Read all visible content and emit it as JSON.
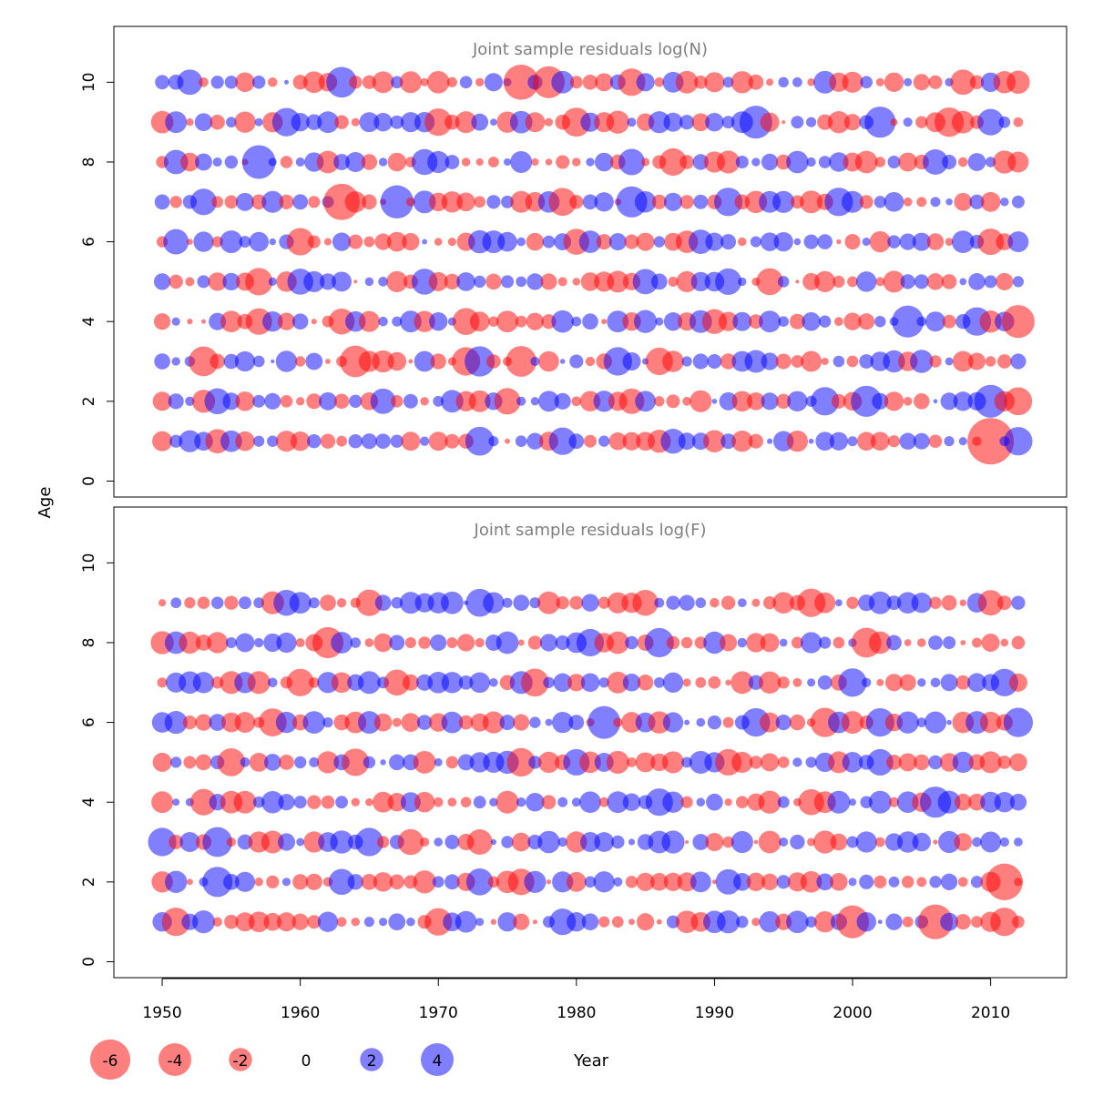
{
  "figure": {
    "ylabel": "Age",
    "xlabel": "Year",
    "colors": {
      "negative": "#ff0000",
      "positive": "#0000ff",
      "axis": "#000000",
      "panel_title": "#7f7f7f",
      "bubble_opacity": 0.5
    },
    "legend": {
      "items": [
        "-6",
        "-4",
        "-2",
        "0",
        "2",
        "4"
      ]
    }
  },
  "chart_data": [
    {
      "type": "scatter",
      "title": "Joint sample residuals log(N)",
      "xlim": [
        1946.5,
        2015.5
      ],
      "ylim": [
        -0.4,
        11.4
      ],
      "xticks": [
        "1950",
        "1960",
        "1970",
        "1980",
        "1990",
        "2000",
        "2010"
      ],
      "yticks": [
        "0",
        "2",
        "4",
        "6",
        "8",
        "10"
      ],
      "ages": [
        1,
        2,
        3,
        4,
        5,
        6,
        7,
        8,
        9,
        10
      ],
      "year_start": 1950,
      "year_end": 2012,
      "notes": "bubble area proportional to |residual|; red = negative, blue = positive",
      "residuals_approx": [
        {
          "age": 1,
          "year": 1950,
          "value": -1.5
        },
        {
          "age": 1,
          "year": 1952,
          "value": 1.8
        },
        {
          "age": 1,
          "year": 1954,
          "value": -2.2
        },
        {
          "age": 1,
          "year": 1973,
          "value": 3.1
        },
        {
          "age": 1,
          "year": 1979,
          "value": 2.8
        },
        {
          "age": 1,
          "year": 1987,
          "value": 2.3
        },
        {
          "age": 1,
          "year": 2010,
          "value": -8.0
        },
        {
          "age": 1,
          "year": 2012,
          "value": 3.0
        },
        {
          "age": 2,
          "year": 1954,
          "value": 2.5
        },
        {
          "age": 2,
          "year": 1966,
          "value": 2.4
        },
        {
          "age": 2,
          "year": 1975,
          "value": -2.6
        },
        {
          "age": 2,
          "year": 1984,
          "value": -2.4
        },
        {
          "age": 2,
          "year": 1998,
          "value": 3.0
        },
        {
          "age": 2,
          "year": 2001,
          "value": 3.6
        },
        {
          "age": 2,
          "year": 2010,
          "value": 4.0
        },
        {
          "age": 2,
          "year": 2012,
          "value": -2.9
        },
        {
          "age": 3,
          "year": 1953,
          "value": -3.3
        },
        {
          "age": 3,
          "year": 1964,
          "value": -3.7
        },
        {
          "age": 3,
          "year": 1972,
          "value": -3.0
        },
        {
          "age": 3,
          "year": 1973,
          "value": 3.4
        },
        {
          "age": 3,
          "year": 1976,
          "value": -3.5
        },
        {
          "age": 3,
          "year": 1983,
          "value": 3.0
        },
        {
          "age": 3,
          "year": 1986,
          "value": -2.8
        },
        {
          "age": 3,
          "year": 2005,
          "value": 2.0
        },
        {
          "age": 4,
          "year": 1957,
          "value": -2.6
        },
        {
          "age": 4,
          "year": 1963,
          "value": -2.5
        },
        {
          "age": 4,
          "year": 1972,
          "value": -2.7
        },
        {
          "age": 4,
          "year": 1990,
          "value": -2.3
        },
        {
          "age": 4,
          "year": 2004,
          "value": 3.8
        },
        {
          "age": 4,
          "year": 2009,
          "value": 3.0
        },
        {
          "age": 4,
          "year": 2012,
          "value": -4.0
        },
        {
          "age": 5,
          "year": 1957,
          "value": -2.8
        },
        {
          "age": 5,
          "year": 1960,
          "value": 2.5
        },
        {
          "age": 5,
          "year": 1969,
          "value": 2.5
        },
        {
          "age": 5,
          "year": 1985,
          "value": 2.4
        },
        {
          "age": 5,
          "year": 1991,
          "value": 2.6
        },
        {
          "age": 5,
          "year": 1994,
          "value": -2.7
        },
        {
          "age": 6,
          "year": 1951,
          "value": 2.4
        },
        {
          "age": 6,
          "year": 1960,
          "value": -2.8
        },
        {
          "age": 6,
          "year": 1980,
          "value": -2.5
        },
        {
          "age": 6,
          "year": 1989,
          "value": 2.2
        },
        {
          "age": 6,
          "year": 2010,
          "value": -2.6
        },
        {
          "age": 7,
          "year": 1953,
          "value": 2.6
        },
        {
          "age": 7,
          "year": 1963,
          "value": -4.9
        },
        {
          "age": 7,
          "year": 1967,
          "value": 4.1
        },
        {
          "age": 7,
          "year": 1979,
          "value": -2.9
        },
        {
          "age": 7,
          "year": 1984,
          "value": 3.6
        },
        {
          "age": 7,
          "year": 1991,
          "value": 3.0
        },
        {
          "age": 7,
          "year": 1999,
          "value": 3.0
        },
        {
          "age": 8,
          "year": 1951,
          "value": 2.2
        },
        {
          "age": 8,
          "year": 1957,
          "value": 4.2
        },
        {
          "age": 8,
          "year": 1969,
          "value": 2.5
        },
        {
          "age": 8,
          "year": 1984,
          "value": 2.6
        },
        {
          "age": 8,
          "year": 1987,
          "value": -2.8
        },
        {
          "age": 8,
          "year": 2006,
          "value": 2.4
        },
        {
          "age": 9,
          "year": 1959,
          "value": 3.0
        },
        {
          "age": 9,
          "year": 1970,
          "value": -2.8
        },
        {
          "age": 9,
          "year": 1980,
          "value": -3.1
        },
        {
          "age": 9,
          "year": 1993,
          "value": 4.0
        },
        {
          "age": 9,
          "year": 2002,
          "value": 3.6
        },
        {
          "age": 9,
          "year": 2007,
          "value": -3.2
        },
        {
          "age": 9,
          "year": 2010,
          "value": 2.6
        },
        {
          "age": 10,
          "year": 1952,
          "value": 2.4
        },
        {
          "age": 10,
          "year": 1963,
          "value": 3.5
        },
        {
          "age": 10,
          "year": 1976,
          "value": -4.6
        },
        {
          "age": 10,
          "year": 1978,
          "value": -3.8
        },
        {
          "age": 10,
          "year": 1984,
          "value": -2.8
        },
        {
          "age": 10,
          "year": 2008,
          "value": -2.4
        },
        {
          "age": 10,
          "year": 2012,
          "value": -2.0
        }
      ]
    },
    {
      "type": "scatter",
      "title": "Joint sample residuals log(F)",
      "xlim": [
        1946.5,
        2015.5
      ],
      "ylim": [
        -0.4,
        11.4
      ],
      "xticks": [
        "1950",
        "1960",
        "1970",
        "1980",
        "1990",
        "2000",
        "2010"
      ],
      "yticks": [
        "0",
        "2",
        "4",
        "6",
        "8",
        "10"
      ],
      "ages": [
        1,
        2,
        3,
        4,
        5,
        6,
        7,
        8,
        9
      ],
      "year_start": 1950,
      "year_end": 2012,
      "notes": "bubble area proportional to |residual|; red = negative, blue = positive",
      "residuals_approx": [
        {
          "age": 1,
          "year": 1951,
          "value": -3.0
        },
        {
          "age": 1,
          "year": 1970,
          "value": -2.8
        },
        {
          "age": 1,
          "year": 1979,
          "value": 2.6
        },
        {
          "age": 1,
          "year": 2000,
          "value": -4.0
        },
        {
          "age": 1,
          "year": 2006,
          "value": -4.5
        },
        {
          "age": 1,
          "year": 2011,
          "value": -3.0
        },
        {
          "age": 2,
          "year": 1954,
          "value": 3.4
        },
        {
          "age": 2,
          "year": 1963,
          "value": 2.5
        },
        {
          "age": 2,
          "year": 1973,
          "value": 2.7
        },
        {
          "age": 2,
          "year": 1976,
          "value": -2.6
        },
        {
          "age": 2,
          "year": 1991,
          "value": 2.4
        },
        {
          "age": 2,
          "year": 2011,
          "value": -5.0
        },
        {
          "age": 3,
          "year": 1950,
          "value": 3.0
        },
        {
          "age": 3,
          "year": 1954,
          "value": 3.3
        },
        {
          "age": 3,
          "year": 1965,
          "value": 3.0
        },
        {
          "age": 3,
          "year": 1968,
          "value": -2.5
        },
        {
          "age": 3,
          "year": 1973,
          "value": -2.4
        },
        {
          "age": 4,
          "year": 1953,
          "value": -2.6
        },
        {
          "age": 4,
          "year": 1986,
          "value": 2.8
        },
        {
          "age": 4,
          "year": 1997,
          "value": -2.5
        },
        {
          "age": 4,
          "year": 2006,
          "value": 3.6
        },
        {
          "age": 5,
          "year": 1955,
          "value": -2.9
        },
        {
          "age": 5,
          "year": 1964,
          "value": -2.8
        },
        {
          "age": 5,
          "year": 1976,
          "value": -3.0
        },
        {
          "age": 5,
          "year": 1980,
          "value": 2.6
        },
        {
          "age": 5,
          "year": 1991,
          "value": -2.6
        },
        {
          "age": 5,
          "year": 2002,
          "value": 2.6
        },
        {
          "age": 6,
          "year": 1958,
          "value": -2.9
        },
        {
          "age": 6,
          "year": 1982,
          "value": 4.0
        },
        {
          "age": 6,
          "year": 1993,
          "value": 3.0
        },
        {
          "age": 6,
          "year": 1998,
          "value": -3.2
        },
        {
          "age": 6,
          "year": 2002,
          "value": 3.0
        },
        {
          "age": 6,
          "year": 2012,
          "value": 3.2
        },
        {
          "age": 7,
          "year": 1960,
          "value": -2.8
        },
        {
          "age": 7,
          "year": 1967,
          "value": -2.5
        },
        {
          "age": 7,
          "year": 1977,
          "value": -2.9
        },
        {
          "age": 7,
          "year": 2000,
          "value": 3.0
        },
        {
          "age": 7,
          "year": 2011,
          "value": 2.8
        },
        {
          "age": 8,
          "year": 1962,
          "value": -3.6
        },
        {
          "age": 8,
          "year": 1981,
          "value": 2.8
        },
        {
          "age": 8,
          "year": 1986,
          "value": 3.2
        },
        {
          "age": 8,
          "year": 2001,
          "value": -3.3
        },
        {
          "age": 9,
          "year": 1959,
          "value": 2.5
        },
        {
          "age": 9,
          "year": 1965,
          "value": -2.6
        },
        {
          "age": 9,
          "year": 1973,
          "value": 2.9
        },
        {
          "age": 9,
          "year": 1985,
          "value": -2.5
        },
        {
          "age": 9,
          "year": 1997,
          "value": -3.0
        },
        {
          "age": 9,
          "year": 2010,
          "value": -2.4
        }
      ]
    }
  ]
}
